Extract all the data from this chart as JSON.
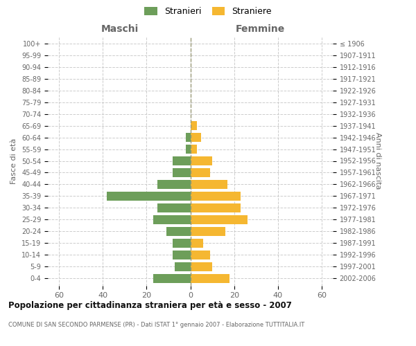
{
  "age_groups": [
    "100+",
    "95-99",
    "90-94",
    "85-89",
    "80-84",
    "75-79",
    "70-74",
    "65-69",
    "60-64",
    "55-59",
    "50-54",
    "45-49",
    "40-44",
    "35-39",
    "30-34",
    "25-29",
    "20-24",
    "15-19",
    "10-14",
    "5-9",
    "0-4"
  ],
  "birth_years": [
    "≤ 1906",
    "1907-1911",
    "1912-1916",
    "1917-1921",
    "1922-1926",
    "1927-1931",
    "1932-1936",
    "1937-1941",
    "1942-1946",
    "1947-1951",
    "1952-1956",
    "1957-1961",
    "1962-1966",
    "1967-1971",
    "1972-1976",
    "1977-1981",
    "1982-1986",
    "1987-1991",
    "1992-1996",
    "1997-2001",
    "2002-2006"
  ],
  "maschi": [
    0,
    0,
    0,
    0,
    0,
    0,
    0,
    0,
    2,
    2,
    8,
    8,
    15,
    38,
    15,
    17,
    11,
    8,
    8,
    7,
    17
  ],
  "femmine": [
    0,
    0,
    0,
    0,
    0,
    0,
    0,
    3,
    5,
    3,
    10,
    9,
    17,
    23,
    23,
    26,
    16,
    6,
    9,
    10,
    18
  ],
  "color_maschi": "#6d9e5a",
  "color_femmine": "#f5b731",
  "title": "Popolazione per cittadinanza straniera per età e sesso - 2007",
  "subtitle": "COMUNE DI SAN SECONDO PARMENSE (PR) - Dati ISTAT 1° gennaio 2007 - Elaborazione TUTTITALIA.IT",
  "label_maschi": "Maschi",
  "label_femmine": "Femmine",
  "ylabel_left": "Fasce di età",
  "ylabel_right": "Anni di nascita",
  "xlim": 65,
  "legend_maschi": "Stranieri",
  "legend_femmine": "Straniere",
  "bg_color": "#ffffff",
  "grid_color": "#cccccc",
  "label_color": "#666666",
  "title_color": "#111111",
  "dashed_color": "#999977"
}
